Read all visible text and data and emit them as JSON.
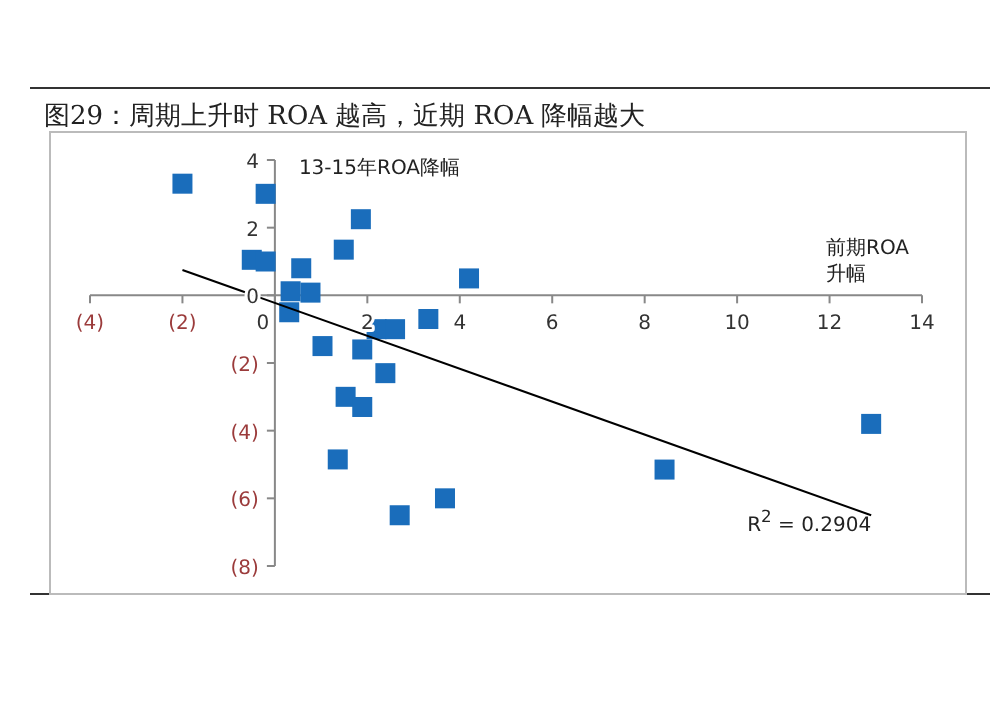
{
  "chart_data": {
    "type": "scatter",
    "title": "图29：周期上升时 ROA 越高，近期 ROA 降幅越大",
    "xlabel": "前期ROA升幅",
    "ylabel": "13-15年ROA降幅",
    "annotations": [
      "R$^{2}$ = 0.2904"
    ],
    "series": [
      {
        "color": "#1a6dbb",
        "x": [
          -2,
          -0.2,
          -0.5,
          -0.2,
          0.57,
          1.86,
          1.49,
          4.2,
          0.34,
          0.77,
          0.31,
          3.32,
          2.2,
          2.6,
          1.03,
          1.89,
          2.39,
          1.53,
          1.89,
          12.9,
          1.36,
          8.43,
          3.68,
          2.7
        ],
        "values": [
          3.3,
          3.0,
          1.05,
          1.0,
          0.8,
          2.25,
          1.35,
          0.5,
          0.12,
          0.08,
          -0.5,
          -0.7,
          -1.0,
          -1.0,
          -1.5,
          -1.6,
          -2.3,
          -3.0,
          -3.3,
          -3.8,
          -4.85,
          -5.15,
          -6.0,
          -6.5
        ]
      },
      {
        "type": "line",
        "color": "#000000",
        "marker": "none",
        "x": [
          -2,
          12.9
        ],
        "values": [
          0.75,
          -6.5
        ]
      }
    ],
    "xlim": [
      -4,
      14
    ],
    "ylim": [
      -8,
      4
    ],
    "xticks": [
      {
        "value": -4,
        "label": "(4)"
      },
      {
        "value": -2,
        "label": "(2)"
      },
      0,
      2,
      4,
      6,
      8,
      10,
      12,
      14
    ],
    "yticks": [
      {
        "value": -8,
        "label": "(8)"
      },
      {
        "value": -6,
        "label": "(6)"
      },
      {
        "value": -4,
        "label": "(4)"
      },
      {
        "value": -2,
        "label": "(2)"
      },
      0,
      2,
      4
    ],
    "marker": "square",
    "grid": false
  }
}
